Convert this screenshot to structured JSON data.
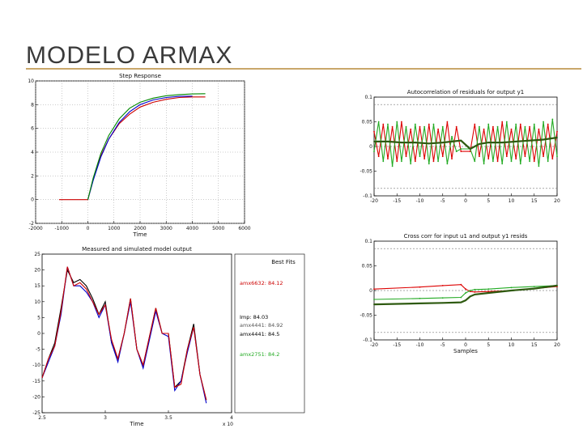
{
  "slide": {
    "title": "MODELO ARMAX"
  },
  "chart_data": [
    {
      "id": "step",
      "type": "line",
      "title": "Step Response",
      "xlabel": "Time",
      "ylabel": "",
      "xlim": [
        -2000,
        6000
      ],
      "ylim": [
        -2,
        10
      ],
      "xticks": [
        -2000,
        -1000,
        0,
        1000,
        2000,
        3000,
        4000,
        5000,
        6000
      ],
      "xtick_labels": [
        "-2000",
        "-1000",
        "0",
        "1000",
        "2000",
        "3000",
        "4000",
        "5000",
        "6000"
      ],
      "yticks": [
        -2,
        0,
        2,
        4,
        6,
        8,
        10
      ],
      "ytick_labels": [
        "-2",
        "0",
        "2",
        "4",
        "6",
        "8",
        "10"
      ],
      "grid": true,
      "series": [
        {
          "color": "#cc0000",
          "x": [
            -1100,
            0,
            200,
            500,
            800,
            1200,
            1600,
            2000,
            2500,
            3000,
            3500,
            4000,
            4500
          ],
          "y": [
            0,
            0,
            1.7,
            3.7,
            5.1,
            6.4,
            7.2,
            7.8,
            8.2,
            8.45,
            8.6,
            8.65,
            8.65
          ]
        },
        {
          "color": "#0000cc",
          "x": [
            0,
            200,
            500,
            800,
            1200,
            1600,
            2000,
            2500,
            3000,
            3500,
            4000
          ],
          "y": [
            0,
            1.6,
            3.6,
            5.1,
            6.5,
            7.4,
            8.0,
            8.4,
            8.6,
            8.7,
            8.72
          ]
        },
        {
          "color": "#008800",
          "x": [
            0,
            200,
            500,
            800,
            1200,
            1600,
            2000,
            2500,
            3000,
            3500,
            4000,
            4500
          ],
          "y": [
            0,
            1.8,
            3.9,
            5.4,
            6.8,
            7.7,
            8.2,
            8.55,
            8.75,
            8.85,
            8.9,
            8.92
          ]
        }
      ]
    },
    {
      "id": "autocorr",
      "type": "line",
      "title": "Autocorrelation of residuals for output y1",
      "xlabel": "",
      "ylabel": "",
      "xlim": [
        -20,
        20
      ],
      "ylim": [
        -0.1,
        0.1
      ],
      "xticks": [
        -20,
        -15,
        -10,
        -5,
        0,
        5,
        10,
        15,
        20
      ],
      "xtick_labels": [
        "-20",
        "-15",
        "-10",
        "-5",
        "0",
        "5",
        "10",
        "15",
        "20"
      ],
      "yticks": [
        -0.1,
        -0.05,
        0,
        0.05,
        0.1
      ],
      "ytick_labels": [
        "-0.1",
        "-0.05",
        "0",
        "0.05",
        "0.1"
      ],
      "confidence_band": [
        -0.085,
        0.085
      ],
      "series": [
        {
          "color": "#dd0000",
          "x": [
            -20,
            -19,
            -18,
            -17,
            -16,
            -15,
            -14,
            -13,
            -12,
            -11,
            -10,
            -9,
            -8,
            -7,
            -6,
            -5,
            -4,
            -3,
            -2,
            -1,
            1,
            2,
            3,
            4,
            5,
            6,
            7,
            8,
            9,
            10,
            11,
            12,
            13,
            14,
            15,
            16,
            17,
            18,
            19,
            20
          ],
          "y": [
            0.03,
            -0.02,
            0.045,
            -0.025,
            0.04,
            -0.03,
            0.05,
            -0.02,
            0.035,
            -0.03,
            0.04,
            -0.025,
            0.045,
            -0.03,
            0.035,
            -0.02,
            0.05,
            -0.025,
            0.04,
            -0.01,
            -0.01,
            0.045,
            -0.02,
            0.035,
            -0.025,
            0.04,
            -0.03,
            0.05,
            -0.02,
            0.035,
            -0.025,
            0.045,
            -0.02,
            0.04,
            -0.03,
            0.035,
            -0.02,
            0.045,
            -0.025,
            0.03
          ]
        },
        {
          "color": "#22aa22",
          "x": [
            -20,
            -19,
            -18,
            -17,
            -16,
            -15,
            -14,
            -13,
            -12,
            -11,
            -10,
            -9,
            -8,
            -7,
            -6,
            -5,
            -4,
            -3,
            -2,
            -1,
            1,
            2,
            3,
            4,
            5,
            6,
            7,
            8,
            9,
            10,
            11,
            12,
            13,
            14,
            15,
            16,
            17,
            18,
            19,
            20
          ],
          "y": [
            -0.01,
            0.05,
            -0.03,
            0.045,
            -0.04,
            0.05,
            -0.03,
            0.04,
            -0.035,
            0.045,
            -0.02,
            0.04,
            -0.035,
            0.045,
            -0.03,
            0.04,
            -0.035,
            0.02,
            -0.01,
            -0.005,
            -0.005,
            -0.03,
            0.04,
            -0.035,
            0.045,
            -0.03,
            0.04,
            -0.035,
            0.05,
            -0.03,
            0.045,
            -0.035,
            0.04,
            -0.03,
            0.045,
            -0.04,
            0.05,
            -0.03,
            0.055,
            -0.02
          ]
        },
        {
          "color": "#2e5a10",
          "x": [
            -20,
            -17,
            -14,
            -11,
            -8,
            -5,
            -3,
            -1,
            1,
            3,
            5,
            8,
            11,
            14,
            17,
            20
          ],
          "y": [
            0.01,
            0.01,
            0.008,
            0.008,
            0.006,
            0.008,
            0.01,
            0.012,
            -0.005,
            0.005,
            0.008,
            0.008,
            0.01,
            0.012,
            0.014,
            0.018
          ]
        }
      ]
    },
    {
      "id": "crosscorr",
      "type": "line",
      "title": "Cross corr for input u1 and output y1 resids",
      "xlabel": "Samples",
      "ylabel": "",
      "xlim": [
        -20,
        20
      ],
      "ylim": [
        -0.1,
        0.1
      ],
      "xticks": [
        -20,
        -15,
        -10,
        -5,
        0,
        5,
        10,
        15,
        20
      ],
      "xtick_labels": [
        "-20",
        "-15",
        "-10",
        "-5",
        "0",
        "5",
        "10",
        "15",
        "20"
      ],
      "yticks": [
        -0.1,
        -0.05,
        0,
        0.05,
        0.1
      ],
      "ytick_labels": [
        "-0.1",
        "-0.05",
        "0",
        "0.05",
        "0.1"
      ],
      "confidence_band": [
        -0.085,
        0.085
      ],
      "series": [
        {
          "color": "#dd0000",
          "x": [
            -20,
            -10,
            -5,
            -1,
            0,
            1,
            2,
            5,
            10,
            15,
            20
          ],
          "y": [
            0.003,
            0.007,
            0.01,
            0.012,
            0.003,
            -0.002,
            -0.003,
            -0.002,
            0.0,
            0.004,
            0.008
          ]
        },
        {
          "color": "#22aa22",
          "x": [
            -20,
            -10,
            -5,
            -1,
            0,
            1,
            2,
            5,
            10,
            15,
            20
          ],
          "y": [
            -0.018,
            -0.016,
            -0.015,
            -0.014,
            -0.005,
            0.0,
            0.002,
            0.003,
            0.006,
            0.008,
            0.01
          ]
        },
        {
          "color": "#2e5a10",
          "x": [
            -20,
            -10,
            -5,
            -1,
            0,
            1,
            2,
            5,
            10,
            15,
            20
          ],
          "y": [
            -0.028,
            -0.026,
            -0.025,
            -0.024,
            -0.02,
            -0.012,
            -0.008,
            -0.005,
            0.0,
            0.004,
            0.01
          ]
        }
      ]
    },
    {
      "id": "measured",
      "type": "line",
      "title": "Measured and simulated model output",
      "xlabel": "Time",
      "ylabel": "",
      "xlim": [
        2.5,
        4
      ],
      "ylim": [
        -25,
        25
      ],
      "xticks": [
        2.5,
        3,
        3.5,
        4
      ],
      "xtick_labels": [
        "2.5",
        "3",
        "3.5",
        "4"
      ],
      "x_multiplier": "x 10",
      "yticks": [
        25,
        20,
        15,
        10,
        5,
        0,
        -5,
        -10,
        -15,
        -20,
        -25
      ],
      "ytick_labels": [
        "25",
        "20",
        "15",
        "10",
        "5",
        "0",
        "-5",
        "-10",
        "-15",
        "-20",
        "-25"
      ],
      "legend": {
        "title": "Best Fits",
        "entries": [
          {
            "label": "amx6632: 84.12",
            "color": "#cc0000"
          },
          {
            "label": "Imp: 84.03",
            "color": "#000000"
          },
          {
            "label": "amx4441: 84.92",
            "color": "#555555"
          },
          {
            "label": "amx4441: 84.5",
            "color": "#000000"
          },
          {
            "label": "amx2751: 84.2",
            "color": "#22aa22"
          }
        ]
      },
      "series": [
        {
          "color": "#000000",
          "x": [
            2.5,
            2.55,
            2.6,
            2.65,
            2.7,
            2.75,
            2.8,
            2.85,
            2.9,
            2.95,
            3.0,
            3.05,
            3.1,
            3.15,
            3.2,
            3.25,
            3.3,
            3.35,
            3.4,
            3.45,
            3.5,
            3.55,
            3.6,
            3.65,
            3.7,
            3.75,
            3.8
          ],
          "y": [
            -14,
            -8,
            -3,
            8,
            20,
            16,
            17,
            15,
            11,
            6,
            10,
            -3,
            -8,
            0,
            11,
            -5,
            -10,
            -1,
            8,
            0,
            0,
            -17,
            -15,
            -5,
            3,
            -13,
            -21
          ]
        },
        {
          "color": "#0000cc",
          "x": [
            2.5,
            2.55,
            2.6,
            2.65,
            2.7,
            2.75,
            2.8,
            2.85,
            2.9,
            2.95,
            3.0,
            3.05,
            3.1,
            3.15,
            3.2,
            3.25,
            3.3,
            3.35,
            3.4,
            3.45,
            3.5,
            3.55,
            3.6,
            3.65,
            3.7,
            3.75,
            3.8
          ],
          "y": [
            -14,
            -9,
            -4,
            6,
            21,
            15,
            15,
            13,
            10,
            5,
            9,
            -3,
            -9,
            0,
            10,
            -5,
            -11,
            -2,
            7,
            0,
            -1,
            -18,
            -15,
            -6,
            2,
            -13,
            -22
          ]
        },
        {
          "color": "#cc0000",
          "x": [
            2.5,
            2.55,
            2.6,
            2.65,
            2.7,
            2.75,
            2.8,
            2.85,
            2.9,
            2.95,
            3.0,
            3.05,
            3.1,
            3.15,
            3.2,
            3.25,
            3.3,
            3.35,
            3.4,
            3.45,
            3.5,
            3.55,
            3.6,
            3.65,
            3.7,
            3.75,
            3.8
          ],
          "y": [
            -14,
            -8,
            -4,
            7,
            21,
            15,
            16,
            14,
            10,
            6,
            9,
            -2,
            -8,
            0,
            11,
            -5,
            -10,
            -1,
            8,
            0,
            0,
            -17,
            -16,
            -5,
            2,
            -13,
            -21
          ]
        }
      ]
    }
  ]
}
